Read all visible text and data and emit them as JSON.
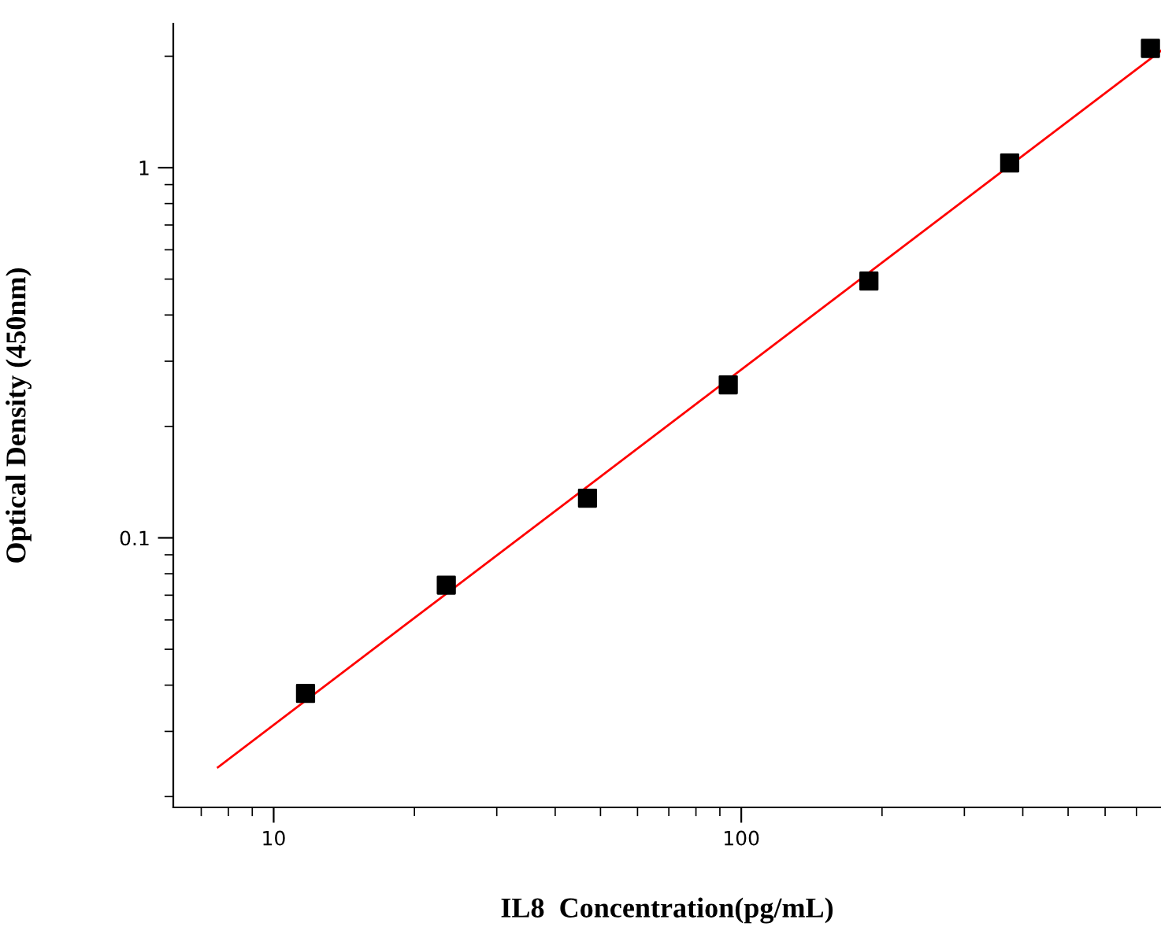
{
  "chart_data": {
    "type": "scatter",
    "xlabel": "IL8  Concentration(pg/mL)",
    "ylabel": "Optical Density (450nm)",
    "log": "xy",
    "grid": false,
    "legend": false,
    "x": [
      11.7,
      23.4,
      46.9,
      93.8,
      187.5,
      375,
      750
    ],
    "series": [
      {
        "color": "#000000",
        "marker": "square",
        "values": [
          0.038,
          0.0745,
          0.128,
          0.259,
          0.494,
          1.03,
          2.1
        ]
      },
      {
        "type": "line",
        "color": "#ff0000",
        "marker": "none",
        "line_style": "solid",
        "x": [
          7.6,
          790
        ],
        "values": [
          0.024,
          2.07
        ]
      }
    ],
    "xlim": [
      6.1,
      790
    ],
    "ylim": [
      0.0187,
      2.45
    ],
    "xticks": [
      10,
      100
    ],
    "yticks": [
      0.1,
      1
    ]
  }
}
